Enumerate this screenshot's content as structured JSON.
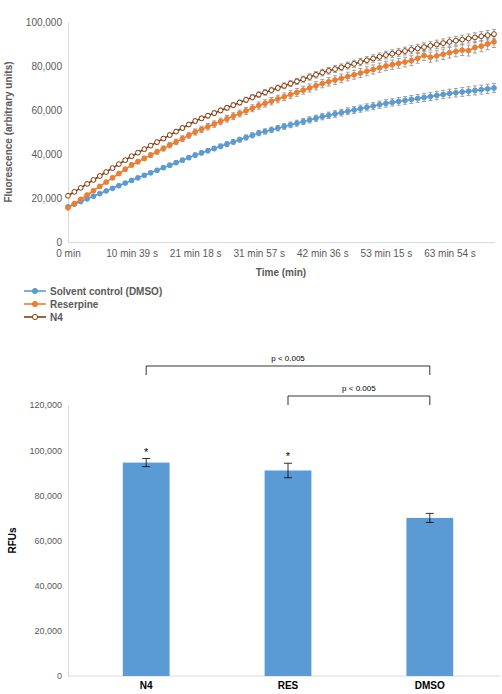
{
  "chart_data": [
    {
      "type": "line",
      "x_label": "Time (min)",
      "y_label": "Fluorescence (arbitrary units)",
      "legend": "bottom",
      "grid": false,
      "ylim": [
        0,
        100000
      ],
      "yticks": [
        0,
        {
          "value": 20000,
          "label": "20,000"
        },
        {
          "value": 40000,
          "label": "40,000"
        },
        {
          "value": 60000,
          "label": "60,000"
        },
        {
          "value": 80000,
          "label": "80,000"
        },
        {
          "value": 100000,
          "label": "100,000"
        }
      ],
      "categories": [
        "0 min",
        null,
        null,
        null,
        null,
        null,
        null,
        null,
        null,
        null,
        "10 min 39 s",
        null,
        null,
        null,
        null,
        null,
        null,
        null,
        null,
        null,
        "21 min 18 s",
        null,
        null,
        null,
        null,
        null,
        null,
        null,
        null,
        null,
        "31 min 57 s",
        null,
        null,
        null,
        null,
        null,
        null,
        null,
        null,
        null,
        "42 min 36 s",
        null,
        null,
        null,
        null,
        null,
        null,
        null,
        null,
        null,
        "53 min 15 s",
        null,
        null,
        null,
        null,
        null,
        null,
        null,
        null,
        null,
        "63 min 54 s",
        null,
        null,
        null,
        null,
        null,
        null,
        null
      ],
      "series": [
        {
          "name": "Solvent control (DMSO)",
          "color": "#5b9bd5",
          "marker": "circle",
          "line_style": "solid",
          "values": [
            16000,
            17200,
            18400,
            19600,
            20800,
            22000,
            23200,
            24400,
            25600,
            26800,
            28000,
            29150,
            30300,
            31450,
            32600,
            33750,
            34900,
            36050,
            37200,
            38350,
            39500,
            40500,
            41500,
            42500,
            43500,
            44500,
            45500,
            46500,
            47500,
            48500,
            49500,
            50250,
            51000,
            51750,
            52500,
            53250,
            54000,
            54750,
            55500,
            56250,
            57000,
            57600,
            58200,
            58800,
            59400,
            60000,
            60600,
            61200,
            61800,
            62400,
            63000,
            63450,
            63900,
            64350,
            64800,
            65250,
            65700,
            66150,
            66600,
            67050,
            67500,
            67850,
            68200,
            68550,
            68900,
            69250,
            69600,
            70000
          ],
          "errors": [
            400,
            450,
            500,
            500,
            550,
            550,
            600,
            600,
            650,
            650,
            700,
            700,
            750,
            750,
            800,
            800,
            850,
            850,
            900,
            900,
            950,
            950,
            1000,
            1000,
            1050,
            1050,
            1100,
            1100,
            1150,
            1150,
            1200,
            1200,
            1250,
            1250,
            1300,
            1300,
            1350,
            1350,
            1400,
            1400,
            1450,
            1450,
            1500,
            1500,
            1550,
            1550,
            1600,
            1600,
            1650,
            1650,
            1700,
            1700,
            1750,
            1750,
            1800,
            1800,
            1850,
            1850,
            1900,
            1900,
            1950,
            1950,
            2000,
            2000,
            2050,
            2050,
            2100,
            2100
          ]
        },
        {
          "name": "Reserpine",
          "color": "#ed7d31",
          "marker": "circle",
          "line_style": "solid",
          "values": [
            15500,
            17450,
            19400,
            21350,
            23300,
            25250,
            27200,
            29150,
            31100,
            33050,
            35000,
            36500,
            38000,
            39500,
            41000,
            42500,
            44000,
            45500,
            47000,
            48500,
            50000,
            51200,
            52400,
            53600,
            54800,
            56000,
            57200,
            58400,
            59600,
            60800,
            62000,
            63000,
            64000,
            65000,
            66000,
            67000,
            68000,
            69000,
            70000,
            71000,
            72000,
            72800,
            73600,
            74400,
            75200,
            76000,
            76800,
            77600,
            78400,
            79200,
            80000,
            80600,
            81200,
            81800,
            82400,
            83500,
            84800,
            84000,
            84600,
            85300,
            86000,
            86600,
            87200,
            87000,
            88400,
            89000,
            90000,
            91000
          ],
          "errors": [
            400,
            450,
            500,
            550,
            600,
            650,
            700,
            750,
            800,
            850,
            900,
            950,
            1000,
            1050,
            1100,
            1150,
            1200,
            1250,
            1300,
            1350,
            1400,
            1400,
            1450,
            1450,
            1500,
            1500,
            1550,
            1550,
            1600,
            1600,
            1650,
            1650,
            1700,
            1700,
            1750,
            1750,
            1800,
            1800,
            1850,
            1850,
            1900,
            1900,
            1950,
            1950,
            2000,
            2000,
            2050,
            2050,
            2100,
            2100,
            2150,
            2150,
            2200,
            2200,
            2250,
            2250,
            2300,
            2300,
            2350,
            2350,
            2400,
            2400,
            2450,
            2450,
            2500,
            2500,
            2600,
            2600
          ]
        },
        {
          "name": "N4",
          "color": "#843c0c",
          "marker": "open-circle",
          "line_style": "solid",
          "values": [
            21000,
            22800,
            24600,
            26400,
            28200,
            30000,
            31800,
            33600,
            35400,
            37200,
            39000,
            40600,
            42200,
            43800,
            45400,
            47000,
            48600,
            50200,
            51800,
            53400,
            55000,
            56200,
            57400,
            58600,
            59800,
            61000,
            62200,
            63400,
            64600,
            65800,
            67000,
            68000,
            69000,
            70000,
            71000,
            72000,
            73000,
            74000,
            75000,
            76000,
            77000,
            77800,
            78600,
            79400,
            80200,
            81000,
            81800,
            82600,
            83400,
            84200,
            85000,
            85600,
            86200,
            86800,
            87400,
            88000,
            88600,
            89200,
            89800,
            90400,
            91000,
            91500,
            92000,
            92500,
            93000,
            93500,
            94000,
            94500
          ],
          "errors": [
            500,
            500,
            550,
            550,
            600,
            600,
            650,
            650,
            700,
            700,
            750,
            750,
            800,
            800,
            850,
            850,
            900,
            900,
            950,
            950,
            1000,
            1000,
            1050,
            1050,
            1100,
            1100,
            1150,
            1150,
            1200,
            1200,
            1250,
            1250,
            1300,
            1300,
            1350,
            1350,
            1400,
            1400,
            1450,
            1450,
            1500,
            1500,
            1550,
            1550,
            1600,
            1600,
            1650,
            1650,
            1700,
            1700,
            1750,
            1750,
            1800,
            1800,
            1850,
            1850,
            1900,
            1900,
            1950,
            1950,
            2000,
            2000,
            2050,
            2050,
            2100,
            2100,
            2150,
            2150
          ]
        }
      ]
    },
    {
      "type": "bar",
      "y_label": "RFUs",
      "grid": false,
      "color": "#5b9bd5",
      "ylim": [
        0,
        120000
      ],
      "yticks": [
        0,
        {
          "value": 20000,
          "label": "20,000"
        },
        {
          "value": 40000,
          "label": "40,000"
        },
        {
          "value": 60000,
          "label": "60,000"
        },
        {
          "value": 80000,
          "label": "80,000"
        },
        {
          "value": 100000,
          "label": "100,000"
        },
        {
          "value": 120000,
          "label": "120,000"
        }
      ],
      "categories": [
        "N4",
        "RES",
        "DMSO"
      ],
      "values": [
        94500,
        91000,
        70000
      ],
      "errors": [
        1800,
        3200,
        2000
      ],
      "significance": [
        "*",
        "*",
        null
      ],
      "annotations": [
        {
          "text": "p < 0.005",
          "from": "N4",
          "to": "DMSO"
        },
        {
          "text": "p < 0.005",
          "from": "RES",
          "to": "DMSO"
        }
      ]
    }
  ]
}
